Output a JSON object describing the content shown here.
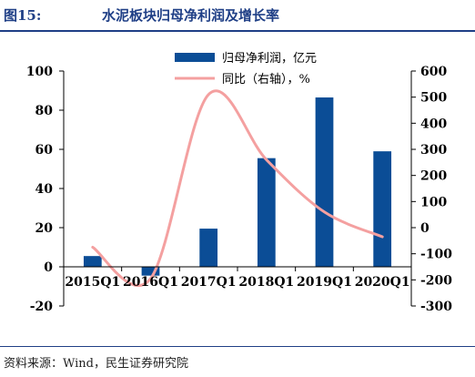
{
  "header": {
    "figure_number": "图15:",
    "title": "水泥板块归母净利润及增长率"
  },
  "source": "资料来源：Wind，民生证券研究院",
  "colors": {
    "bar": "#0b4d96",
    "line": "#f4a0a0",
    "title": "#1f3f86"
  },
  "chart_data": {
    "type": "bar",
    "categories": [
      "2015Q1",
      "2016Q1",
      "2017Q1",
      "2018Q1",
      "2019Q1",
      "2020Q1"
    ],
    "series": [
      {
        "name": "归母净利润，亿元",
        "type": "bar",
        "axis": "left",
        "values": [
          5.5,
          -4.5,
          19.5,
          55.5,
          86.5,
          59
        ]
      },
      {
        "name": "同比（右轴），%",
        "type": "line",
        "axis": "right",
        "smooth": true,
        "values": [
          -75,
          -195,
          510,
          260,
          60,
          -35
        ]
      }
    ],
    "y_left": {
      "min": -20,
      "max": 100,
      "step": 20,
      "ticks": [
        "-20",
        "0",
        "20",
        "40",
        "60",
        "80",
        "100"
      ]
    },
    "y_right": {
      "min": -300,
      "max": 600,
      "step": 100,
      "ticks": [
        "-300",
        "-200",
        "-100",
        "0",
        "100",
        "200",
        "300",
        "400",
        "500",
        "600"
      ]
    },
    "legend_position": "top-center",
    "grid": false
  }
}
